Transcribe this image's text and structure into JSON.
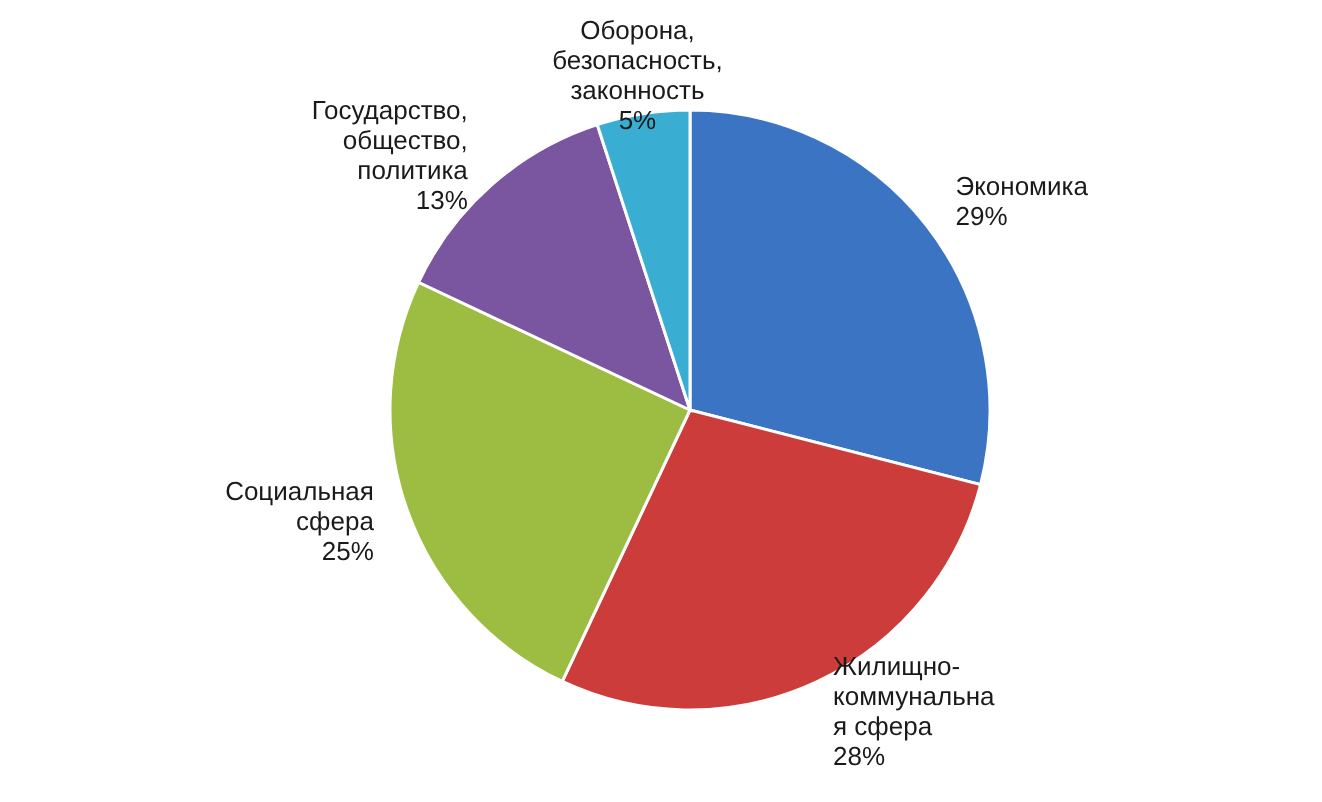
{
  "chart_data": {
    "type": "pie",
    "categories": [
      "Экономика",
      "Жилищно-\nкоммунальна\nя сфера",
      "Социальная\nсфера",
      "Государство,\nобщество,\nполитика",
      "Оборона,\nбезопасность,\nзаконность"
    ],
    "values": [
      29,
      28,
      25,
      13,
      5
    ],
    "colors": [
      "#3a74c2",
      "#cc3c3a",
      "#9cbc42",
      "#7b56a0",
      "#3aaed2"
    ],
    "value_labels": [
      "29%",
      "28%",
      "25%",
      "13%",
      "5%"
    ]
  }
}
